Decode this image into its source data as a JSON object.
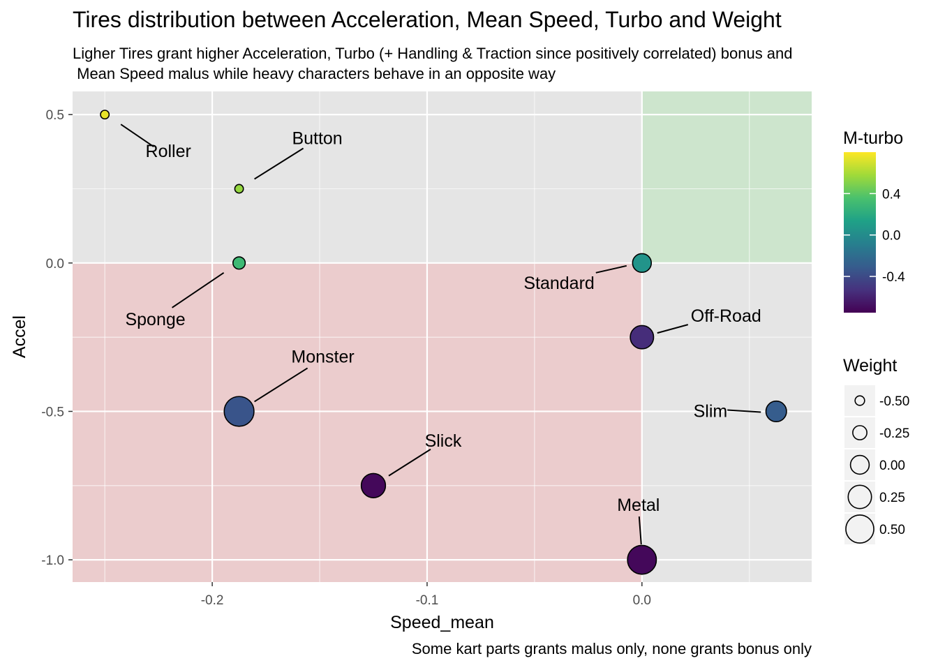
{
  "chart_data": {
    "type": "scatter",
    "title": "Tires distribution between Acceleration, Mean Speed, Turbo and Weight",
    "subtitle": "Ligher Tires grant higher Acceleration, Turbo (+ Handling & Traction since positively correlated) bonus and\n Mean Speed malus while heavy characters behave in an opposite way",
    "caption": "Some kart parts grants malus only, none grants bonus only",
    "xlabel": "Speed_mean",
    "ylabel": "Accel",
    "xlim": [
      -0.265,
      0.079
    ],
    "ylim": [
      -1.075,
      0.578
    ],
    "x_ticks": [
      -0.2,
      -0.1,
      0.0
    ],
    "x_tick_labels": [
      "-0.2",
      "-0.1",
      "0.0"
    ],
    "y_ticks": [
      0.5,
      0.0,
      -0.5,
      -1.0
    ],
    "y_tick_labels": [
      "0.5",
      "0.0",
      "-0.5",
      "-1.0"
    ],
    "grid": true,
    "regions": [
      {
        "x": [
          -0.265,
          0.0
        ],
        "y": [
          -1.075,
          0.0
        ],
        "color": "#f1b3b5"
      },
      {
        "x": [
          0.0,
          0.079
        ],
        "y": [
          0.0,
          0.578
        ],
        "color": "#b5e6b5"
      }
    ],
    "points": [
      {
        "label": "Roller",
        "x": -0.25,
        "y": 0.5,
        "turbo": 0.75,
        "weight": -0.55
      },
      {
        "label": "Button",
        "x": -0.1875,
        "y": 0.25,
        "turbo": 0.55,
        "weight": -0.55
      },
      {
        "label": "Sponge",
        "x": -0.1875,
        "y": 0.0,
        "turbo": 0.3,
        "weight": -0.35
      },
      {
        "label": "Standard",
        "x": 0.0,
        "y": 0.0,
        "turbo": 0.05,
        "weight": 0.0
      },
      {
        "label": "Off-Road",
        "x": 0.0,
        "y": -0.25,
        "turbo": -0.55,
        "weight": 0.25
      },
      {
        "label": "Slim",
        "x": 0.0625,
        "y": -0.5,
        "turbo": -0.3,
        "weight": 0.1
      },
      {
        "label": "Monster",
        "x": -0.1875,
        "y": -0.5,
        "turbo": -0.35,
        "weight": 0.6
      },
      {
        "label": "Slick",
        "x": -0.125,
        "y": -0.75,
        "turbo": -0.72,
        "weight": 0.3
      },
      {
        "label": "Metal",
        "x": 0.0,
        "y": -1.0,
        "turbo": -0.72,
        "weight": 0.55
      }
    ],
    "legend_color": {
      "title": "M-turbo",
      "ticks": [
        0.4,
        0.0,
        -0.4
      ],
      "tick_labels": [
        "0.4",
        "0.0",
        "-0.4"
      ],
      "range": [
        -0.75,
        0.8
      ],
      "palette": [
        "#440154",
        "#46327e",
        "#365c8d",
        "#277f8e",
        "#1fa187",
        "#4ac16d",
        "#a0da39",
        "#fde725"
      ]
    },
    "legend_size": {
      "title": "Weight",
      "values": [
        -0.5,
        -0.25,
        0.0,
        0.25,
        0.5
      ],
      "labels": [
        "-0.50",
        "-0.25",
        "0.00",
        "0.25",
        "0.50"
      ]
    },
    "legend_placement": "right"
  }
}
